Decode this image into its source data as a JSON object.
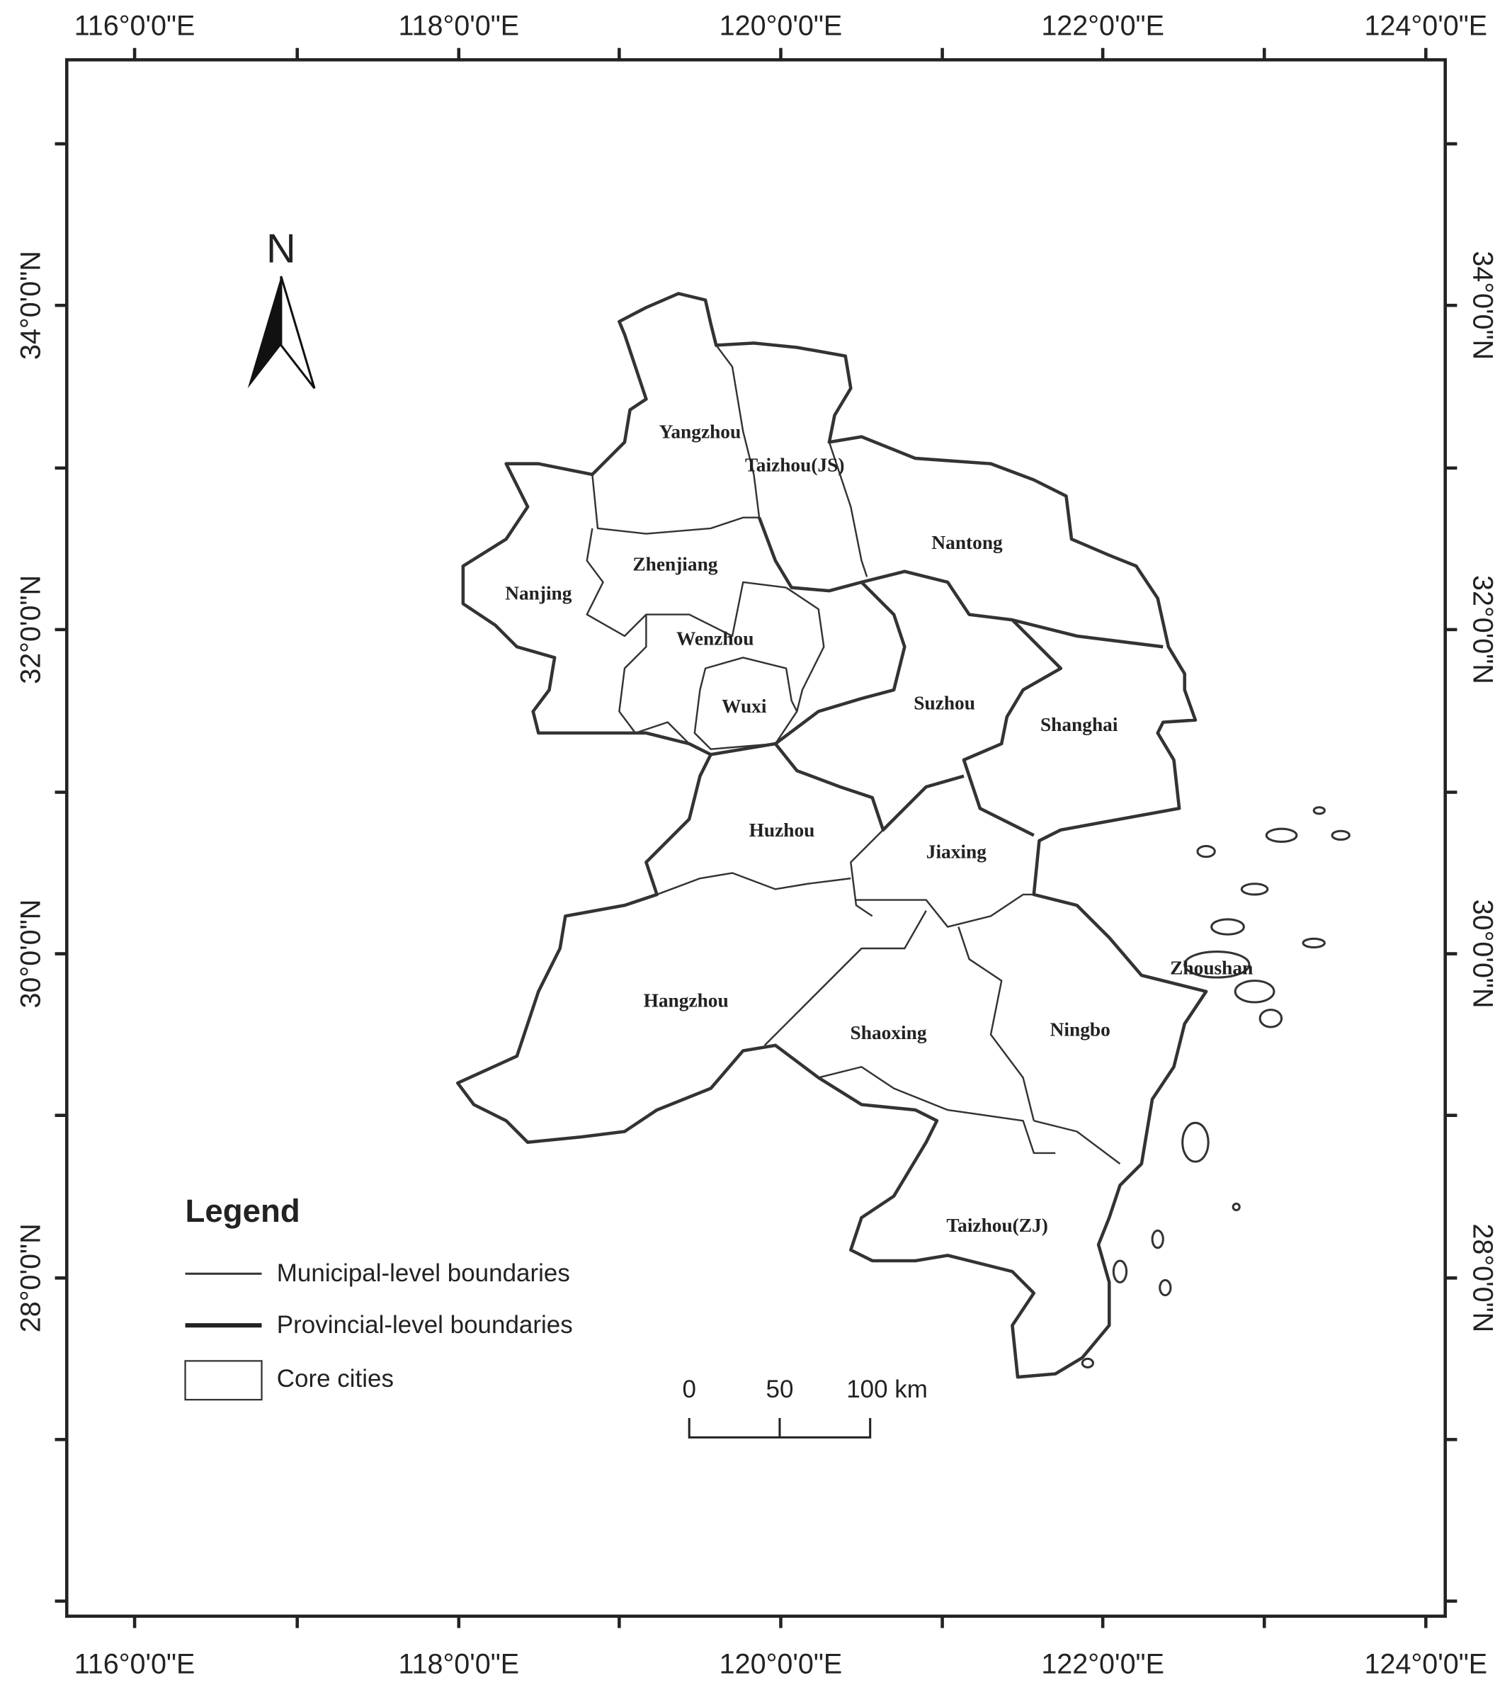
{
  "longitude_labels": [
    "116°0'0\"E",
    "118°0'0\"E",
    "120°0'0\"E",
    "122°0'0\"E",
    "124°0'0\"E"
  ],
  "latitude_labels": [
    "34°0'0\"N",
    "32°0'0\"N",
    "30°0'0\"N",
    "28°0'0\"N"
  ],
  "north_arrow": "N",
  "legend": {
    "title": "Legend",
    "items": [
      "Municipal-level boundaries",
      "Provincial-level boundaries",
      "Core cities"
    ]
  },
  "scale_bar": {
    "labels": [
      "0",
      "50",
      "100 km"
    ]
  },
  "cities": [
    "Yangzhou",
    "Taizhou(JS)",
    "Nantong",
    "Zhenjiang",
    "Nanjing",
    "Wenzhou",
    "Wuxi",
    "Suzhou",
    "Shanghai",
    "Huzhou",
    "Jiaxing",
    "Hangzhou",
    "Shaoxing",
    "Ningbo",
    "Zhoushan",
    "Taizhou(ZJ)"
  ]
}
